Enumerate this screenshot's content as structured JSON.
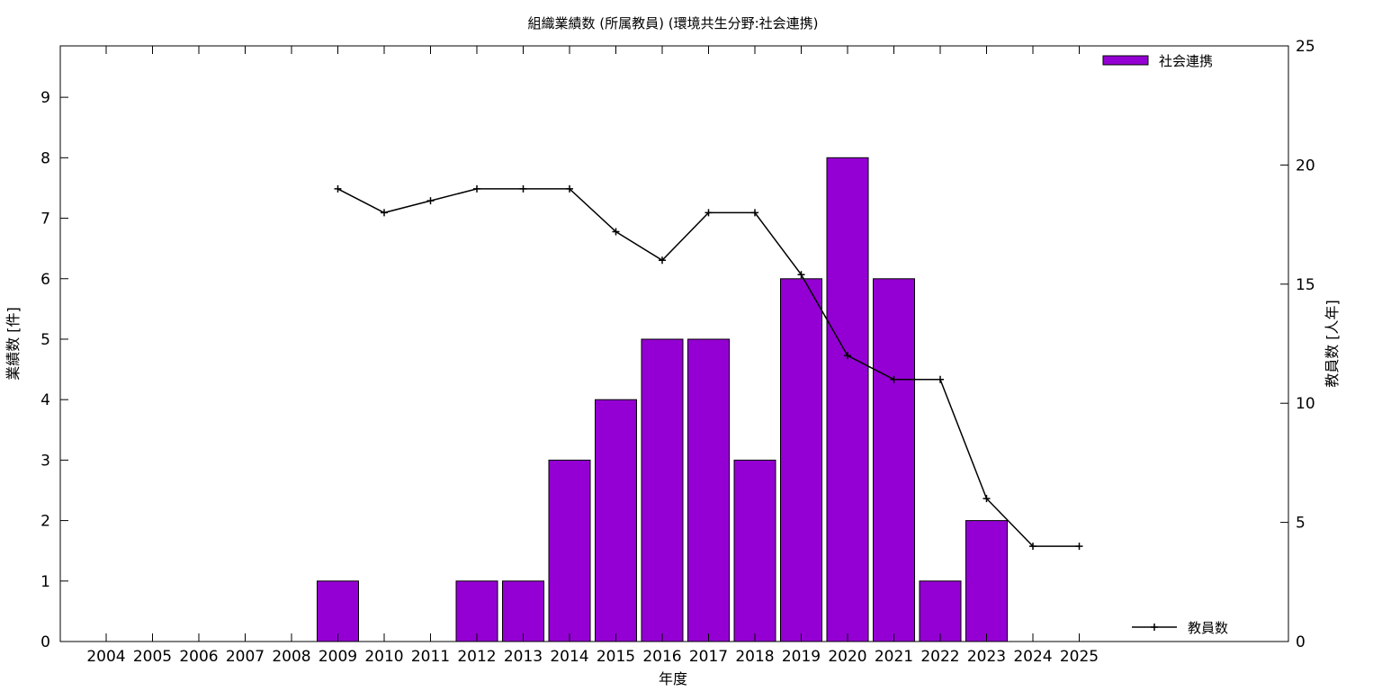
{
  "chart_data": {
    "type": "bar",
    "title": "組織業績数 (所属教員) (環境共生分野:社会連携)",
    "xlabel": "年度",
    "ylabel_left": "業績数 [件]",
    "ylabel_right": "教員数 [人年]",
    "categories": [
      "2004",
      "2005",
      "2006",
      "2007",
      "2008",
      "2009",
      "2010",
      "2011",
      "2012",
      "2013",
      "2014",
      "2015",
      "2016",
      "2017",
      "2018",
      "2019",
      "2020",
      "2021",
      "2022",
      "2023",
      "2024",
      "2025"
    ],
    "ylim_left": [
      0,
      9.85
    ],
    "ylim_right": [
      0,
      25
    ],
    "yticks_left": [
      0,
      1,
      2,
      3,
      4,
      5,
      6,
      7,
      8,
      9
    ],
    "yticks_right": [
      0,
      5,
      10,
      15,
      20,
      25
    ],
    "grid": false,
    "series": [
      {
        "name": "社会連携",
        "type": "bar",
        "axis": "left",
        "color": "#9400d3",
        "values": [
          0,
          0,
          0,
          0,
          0,
          1,
          0,
          0,
          1,
          1,
          3,
          4,
          5,
          5,
          3,
          6,
          8,
          6,
          1,
          2,
          0,
          0
        ]
      },
      {
        "name": "教員数",
        "type": "line",
        "axis": "right",
        "color": "#000000",
        "x": [
          "2009",
          "2010",
          "2011",
          "2012",
          "2013",
          "2014",
          "2015",
          "2016",
          "2017",
          "2018",
          "2019",
          "2020",
          "2021",
          "2022",
          "2023",
          "2024",
          "2025"
        ],
        "values": [
          19,
          18,
          18.5,
          19,
          19,
          19,
          17.2,
          16,
          18,
          18,
          15.4,
          12,
          11,
          11,
          6,
          4,
          4
        ]
      }
    ],
    "legend": [
      {
        "label": "社会連携",
        "position": "top-right",
        "kind": "box"
      },
      {
        "label": "教員数",
        "position": "bottom-right",
        "kind": "line"
      }
    ]
  }
}
